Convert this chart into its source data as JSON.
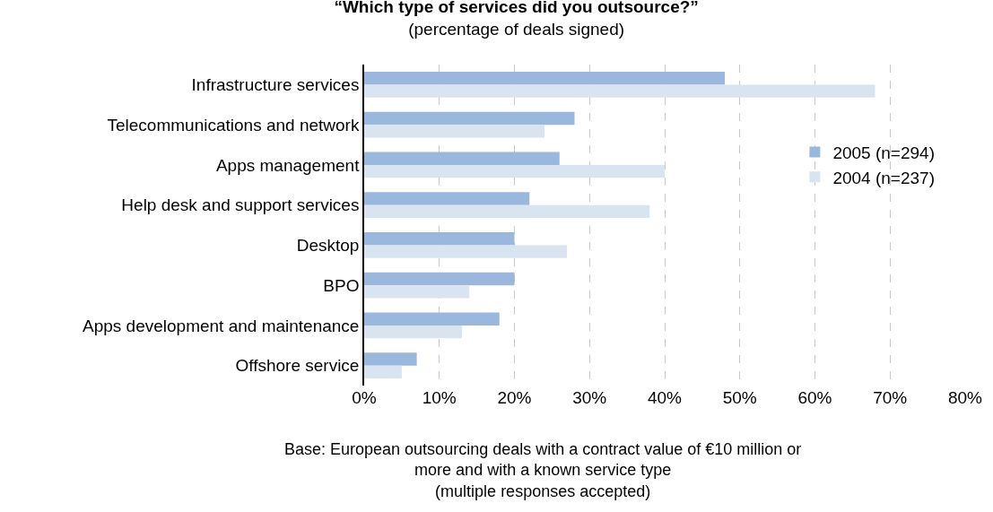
{
  "chart_data": {
    "type": "bar",
    "orientation": "horizontal",
    "title": "“Which type of services did you outsource?”",
    "subtitle": "(percentage of deals signed)",
    "categories": [
      "Infrastructure services",
      "Telecommunications and network",
      "Apps management",
      "Help desk and support services",
      "Desktop",
      "BPO",
      "Apps development and maintenance",
      "Offshore service"
    ],
    "series": [
      {
        "name": "2005 (n=294)",
        "color": "#9ab7de",
        "values": [
          48,
          28,
          26,
          22,
          20,
          20,
          18,
          7
        ]
      },
      {
        "name": "2004 (n=237)",
        "color": "#d9e4f1",
        "values": [
          68,
          24,
          40,
          38,
          27,
          14,
          13,
          5
        ]
      }
    ],
    "xlim": [
      0,
      80
    ],
    "xticks": [
      {
        "value": 0,
        "label": "0%"
      },
      {
        "value": 10,
        "label": "10%"
      },
      {
        "value": 20,
        "label": "20%"
      },
      {
        "value": 30,
        "label": "30%"
      },
      {
        "value": 40,
        "label": "40%"
      },
      {
        "value": 50,
        "label": "50%"
      },
      {
        "value": 60,
        "label": "60%"
      },
      {
        "value": 70,
        "label": "70%"
      },
      {
        "value": 80,
        "label": "80%"
      }
    ],
    "grid": "x",
    "line_style": "dashed",
    "legend": "right",
    "annotations": [
      "Base: European outsourcing deals with a contract value of €10 million or\nmore and with a known service type\n(multiple responses accepted)"
    ]
  }
}
